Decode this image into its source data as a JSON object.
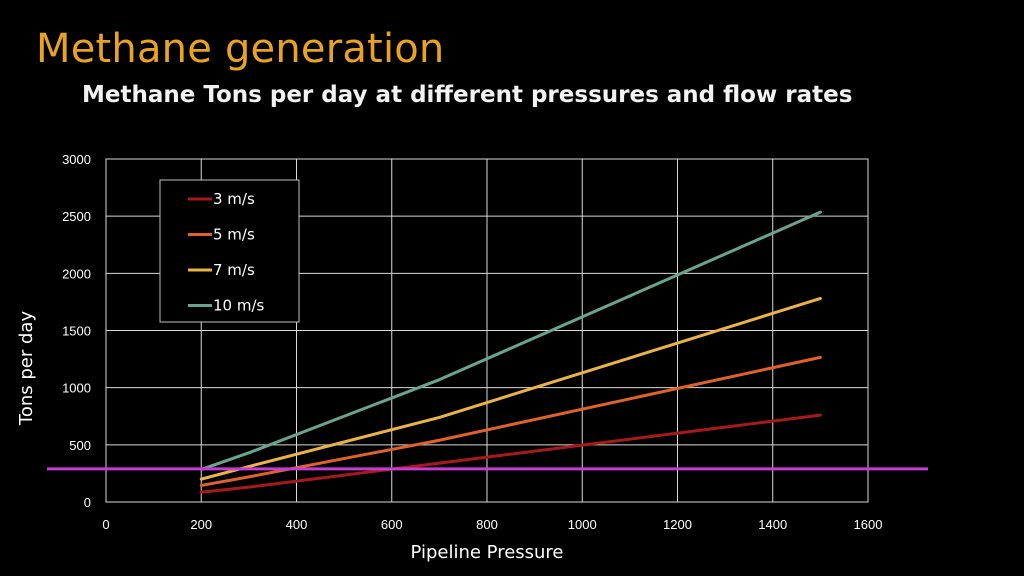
{
  "slide": {
    "title": "Methane generation",
    "subtitle": "Methane Tons per day at different pressures and flow rates"
  },
  "chart_data": {
    "type": "line",
    "xlabel": "Pipeline Pressure",
    "ylabel": "Tons per day",
    "xlim": [
      0,
      1600
    ],
    "ylim": [
      0,
      3000
    ],
    "x_ticks": [
      0,
      200,
      400,
      600,
      800,
      1000,
      1200,
      1400,
      1600
    ],
    "y_ticks": [
      0,
      500,
      1000,
      1500,
      2000,
      2500,
      3000
    ],
    "grid": true,
    "legend_position": "top-left",
    "x": [
      200,
      300,
      700,
      1500
    ],
    "series": [
      {
        "name": "3 m/s",
        "color": "#a8191d",
        "values": [
          85,
          130,
          340,
          760
        ]
      },
      {
        "name": "5 m/s",
        "color": "#e0622a",
        "values": [
          145,
          220,
          540,
          1265
        ]
      },
      {
        "name": "7 m/s",
        "color": "#ebb345",
        "values": [
          200,
          310,
          740,
          1780
        ]
      },
      {
        "name": "10 m/s",
        "color": "#6aa38f",
        "values": [
          285,
          430,
          1070,
          2535
        ]
      }
    ],
    "reference_line": {
      "y": 290,
      "color": "#c63ad6"
    }
  }
}
